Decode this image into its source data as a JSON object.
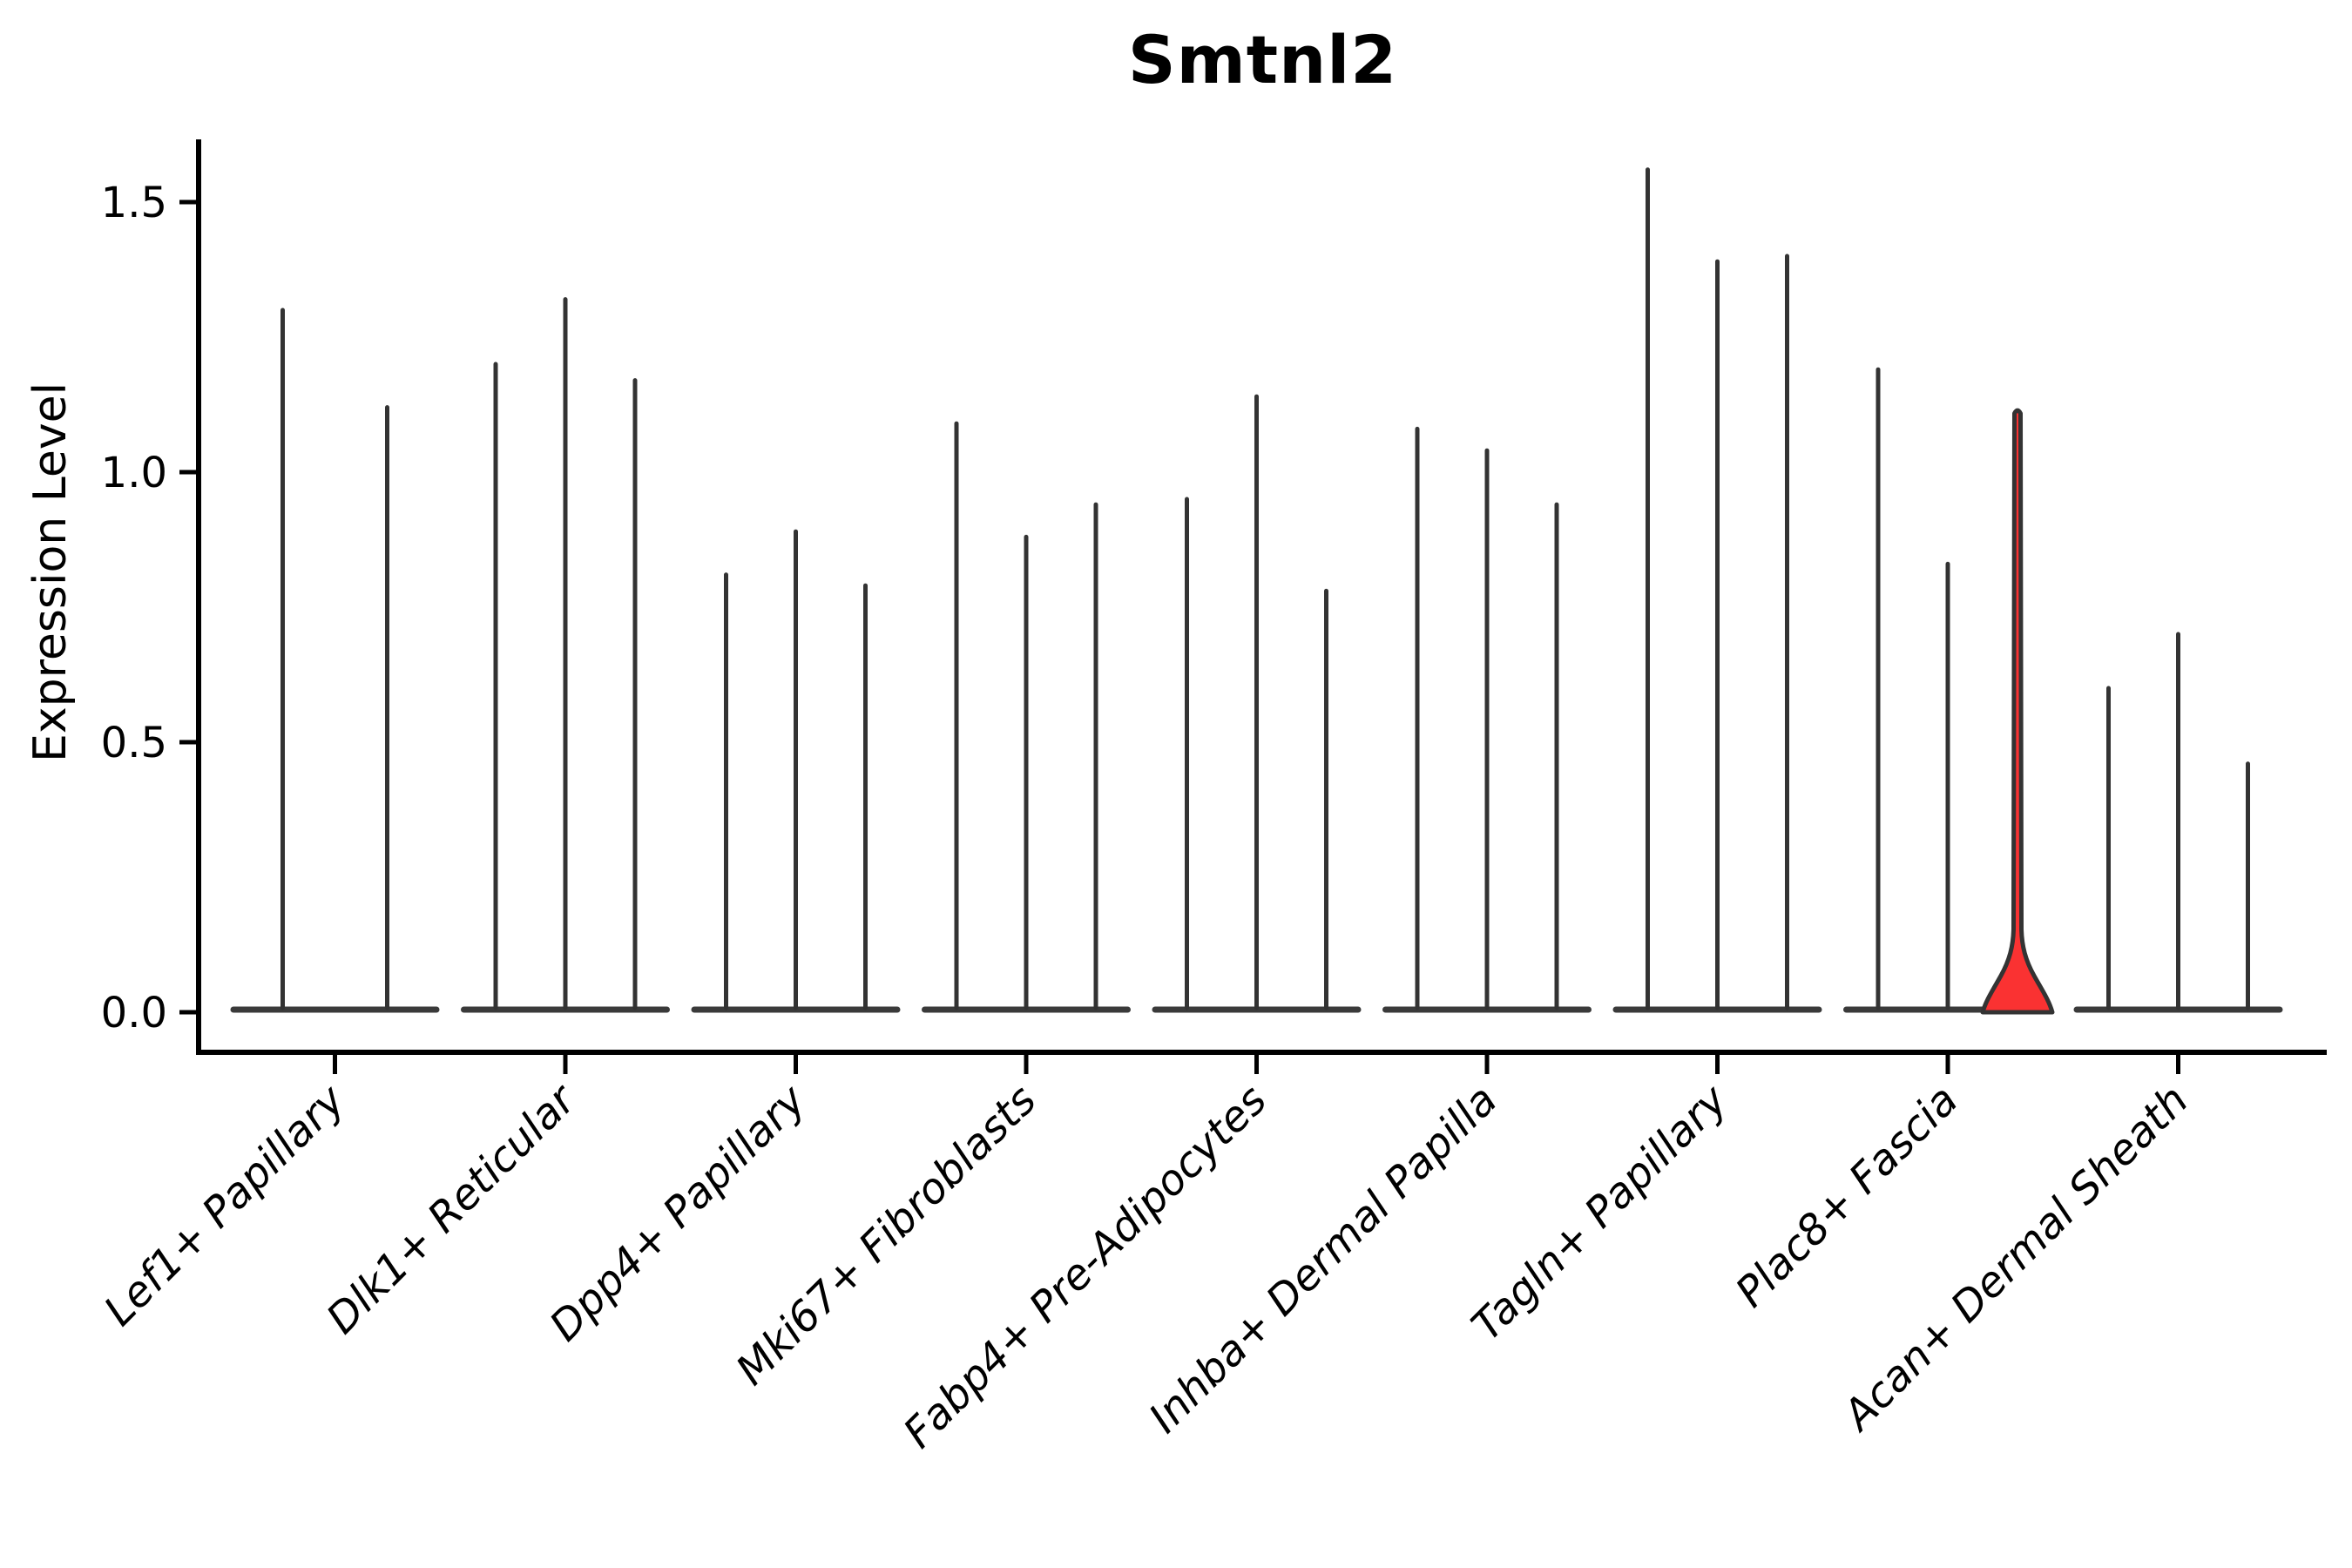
{
  "chart_data": {
    "type": "violin",
    "title": "Smtnl2",
    "ylabel": "Expression Level",
    "xlabel": "",
    "grid": false,
    "legend": "none",
    "ylim": [
      0,
      1.62
    ],
    "y_axis": {
      "ticks": [
        {
          "label": "0.0",
          "value": 0.0
        },
        {
          "label": "0.5",
          "value": 0.5
        },
        {
          "label": "1.0",
          "value": 1.0
        },
        {
          "label": "1.5",
          "value": 1.5
        }
      ]
    },
    "x_label_rotation": 45,
    "x_label_style": "italic",
    "colors": {
      "violin_line": "#333333",
      "baseline": "#3a3a3a",
      "highlight_fill": "#fa3232",
      "axis": "#000000"
    },
    "groups": [
      {
        "label": "Lef1+ Papillary",
        "violins": [
          {
            "max": 1.3
          },
          {
            "max": 1.12
          }
        ]
      },
      {
        "label": "Dlk1+ Reticular",
        "violins": [
          {
            "max": 1.2
          },
          {
            "max": 1.32
          },
          {
            "max": 1.17
          }
        ]
      },
      {
        "label": "Dpp4+ Papillary",
        "violins": [
          {
            "max": 0.81
          },
          {
            "max": 0.89
          },
          {
            "max": 0.79
          }
        ]
      },
      {
        "label": "Mki67+ Fibroblasts",
        "violins": [
          {
            "max": 1.09
          },
          {
            "max": 0.88
          },
          {
            "max": 0.94
          }
        ]
      },
      {
        "label": "Fabp4+ Pre-Adipocytes",
        "violins": [
          {
            "max": 0.95
          },
          {
            "max": 1.14
          },
          {
            "max": 0.78
          }
        ]
      },
      {
        "label": "Inhba+ Dermal Papilla",
        "violins": [
          {
            "max": 1.08
          },
          {
            "max": 1.04
          },
          {
            "max": 0.94
          }
        ]
      },
      {
        "label": "Tagln+ Papillary",
        "violins": [
          {
            "max": 1.56
          },
          {
            "max": 1.39
          },
          {
            "max": 1.4
          }
        ]
      },
      {
        "label": "Plac8+ Fascia",
        "violins": [
          {
            "max": 1.19
          },
          {
            "max": 0.83
          },
          {
            "max": 1.12,
            "highlighted": true
          }
        ]
      },
      {
        "label": "Acan+ Dermal Sheath",
        "violins": [
          {
            "max": 0.6
          },
          {
            "max": 0.7
          },
          {
            "max": 0.46
          }
        ]
      }
    ]
  }
}
